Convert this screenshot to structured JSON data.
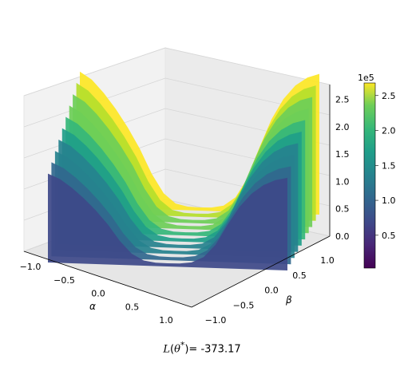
{
  "chart_data": {
    "type": "surface3d",
    "title": "",
    "footer": {
      "prefix": "L(θ*)= ",
      "value": "-373.17"
    },
    "xlabel": "α",
    "ylabel": "β",
    "zlabel": "",
    "x_ticks": [
      "−1.0",
      "−0.5",
      "0.0",
      "0.5",
      "1.0"
    ],
    "y_ticks": [
      "−1.0",
      "−0.5",
      "0.0",
      "0.5",
      "1.0"
    ],
    "z_ticks": [
      "0.0",
      "0.5",
      "1.0",
      "1.5",
      "2.0",
      "2.5"
    ],
    "z_offset_label": "1e5",
    "xlim": [
      -1.0,
      1.0
    ],
    "ylim": [
      -1.0,
      1.0
    ],
    "zlim": [
      0,
      270000
    ],
    "colormap": "viridis",
    "colorbar": {
      "ticks": [
        "0.5",
        "1.0",
        "1.5",
        "2.0",
        "2.5"
      ],
      "offset_label": "1e5",
      "range": [
        3000,
        268000
      ]
    },
    "surface_profile": {
      "x": [
        -1.0,
        -0.9,
        -0.8,
        -0.7,
        -0.6,
        -0.5,
        -0.4,
        -0.3,
        -0.2,
        -0.1,
        0.0,
        0.1,
        0.2,
        0.3,
        0.4,
        0.5,
        0.6,
        0.7,
        0.8,
        0.9,
        1.0
      ],
      "loss": [
        255000,
        240000,
        215000,
        185000,
        150000,
        110000,
        62000,
        25000,
        6000,
        800,
        -373.17,
        600,
        5000,
        22000,
        60000,
        120000,
        175000,
        215000,
        242000,
        258000,
        266000
      ]
    },
    "grid": true
  }
}
